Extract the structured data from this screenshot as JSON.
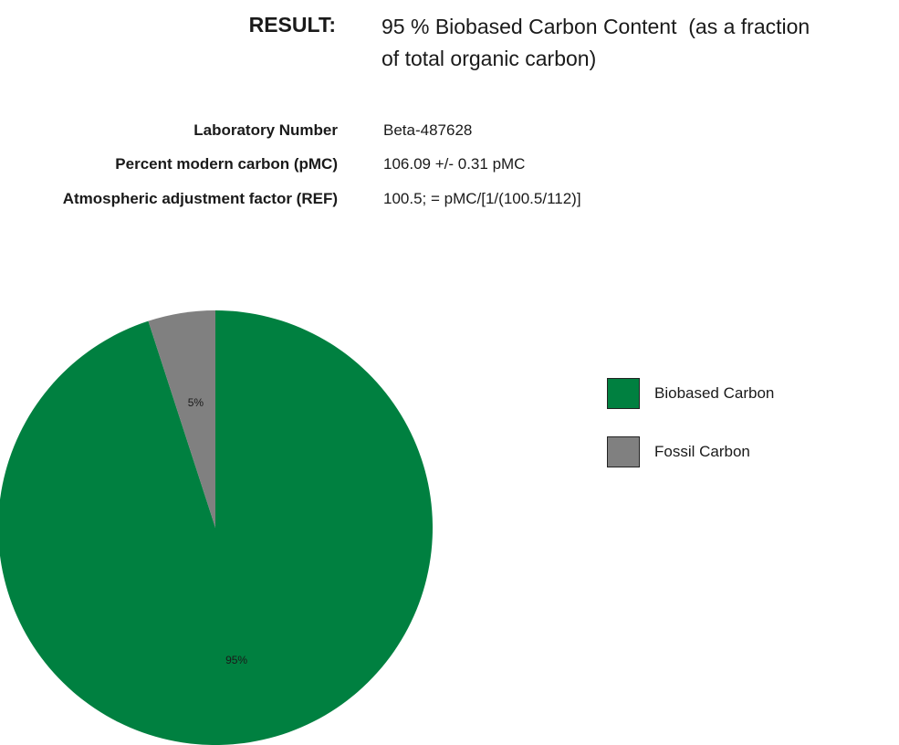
{
  "result": {
    "label": "RESULT:",
    "line1": "95 % Biobased Carbon Content  (as a fraction",
    "line2": "of total organic carbon)"
  },
  "info": [
    {
      "label": "Laboratory Number",
      "value": "Beta-487628"
    },
    {
      "label": "Percent modern carbon (pMC)",
      "value": "106.09 +/- 0.31 pMC"
    },
    {
      "label": "Atmospheric adjustment factor (REF)",
      "value": "100.5; = pMC/[1/(100.5/112)]"
    }
  ],
  "colors": {
    "biobased": "#008040",
    "fossil": "#808080"
  },
  "chart_data": {
    "type": "pie",
    "categories": [
      "Biobased Carbon",
      "Fossil Carbon"
    ],
    "values": [
      95,
      5
    ],
    "slice_labels": [
      "95%",
      "5%"
    ],
    "legend": [
      "Biobased Carbon",
      "Fossil Carbon"
    ],
    "legend_placement": "right",
    "start_angle": "12 o'clock",
    "direction": "clockwise"
  }
}
